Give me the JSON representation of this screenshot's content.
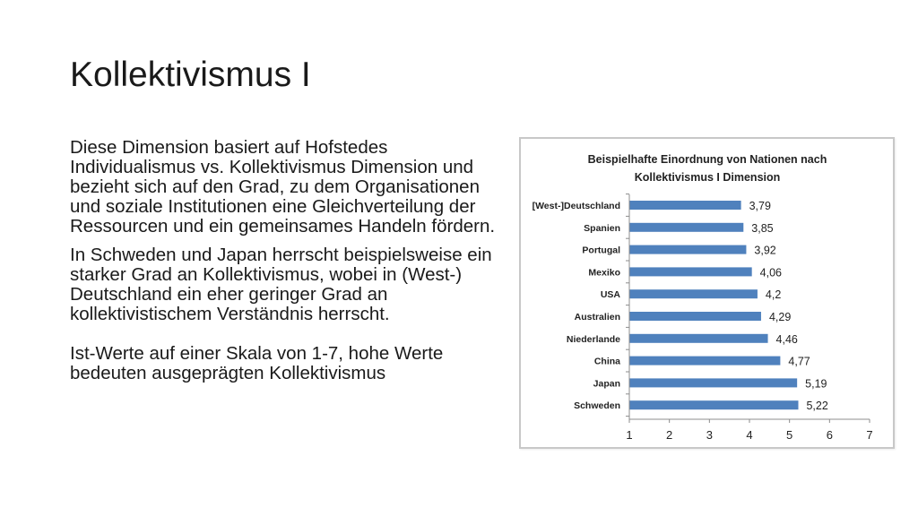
{
  "slide": {
    "title": "Kollektivismus I",
    "paragraphs": [
      "Diese Dimension basiert auf Hofstedes Individualismus vs. Kollektivismus Dimension und bezieht sich auf den Grad, zu dem Organisationen und soziale Institutionen eine Gleichverteilung der Ressourcen und ein gemeinsames Handeln fördern.",
      "In Schweden und Japan herrscht beispielsweise ein starker Grad an Kollektivismus, wobei in (West-) Deutschland ein eher geringer Grad an kollektivistischem Verständnis herrscht.",
      "Ist-Werte auf einer Skala von 1-7, hohe Werte bedeuten ausgeprägten Kollektivismus"
    ]
  },
  "chart_data": {
    "type": "bar",
    "orientation": "horizontal",
    "title_lines": [
      "Beispielhafte Einordnung von Nationen nach",
      "Kollektivismus I Dimension"
    ],
    "categories": [
      "[West-]Deutschland",
      "Spanien",
      "Portugal",
      "Mexiko",
      "USA",
      "Australien",
      "Niederlande",
      "China",
      "Japan",
      "Schweden"
    ],
    "values": [
      3.79,
      3.85,
      3.92,
      4.06,
      4.2,
      4.29,
      4.46,
      4.77,
      5.19,
      5.22
    ],
    "value_labels": [
      "3,79",
      "3,85",
      "3,92",
      "4,06",
      "4,2",
      "4,29",
      "4,46",
      "4,77",
      "5,19",
      "5,22"
    ],
    "xlim": [
      1,
      7
    ],
    "xticks": [
      "1",
      "2",
      "3",
      "4",
      "5",
      "6",
      "7"
    ],
    "grid": false,
    "legend": "none",
    "bar_color": "#4f81bd"
  }
}
